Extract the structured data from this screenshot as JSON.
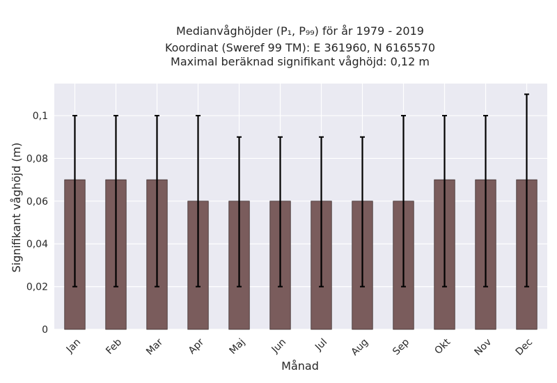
{
  "chart_data": {
    "type": "bar",
    "title_lines": [
      "Medianvåghöjder (P₁, P₉₉) för år 1979 - 2019",
      "Koordinat (Sweref 99 TM): E 361960, N 6165570",
      "Maximal beräknad signifikant våghöjd: 0,12 m"
    ],
    "xlabel": "Månad",
    "ylabel": "Signifikant våghöjd (m)",
    "categories": [
      "Jan",
      "Feb",
      "Mar",
      "Apr",
      "Maj",
      "Jun",
      "Jul",
      "Aug",
      "Sep",
      "Okt",
      "Nov",
      "Dec"
    ],
    "values": [
      0.07,
      0.07,
      0.07,
      0.06,
      0.06,
      0.06,
      0.06,
      0.06,
      0.06,
      0.07,
      0.07,
      0.07
    ],
    "err_low": [
      0.02,
      0.02,
      0.02,
      0.02,
      0.02,
      0.02,
      0.02,
      0.02,
      0.02,
      0.02,
      0.02,
      0.02
    ],
    "err_high": [
      0.1,
      0.1,
      0.1,
      0.1,
      0.09,
      0.09,
      0.09,
      0.09,
      0.1,
      0.1,
      0.1,
      0.11
    ],
    "ylim": [
      0,
      0.115
    ],
    "yticks": [
      0,
      0.02,
      0.04,
      0.06,
      0.08,
      0.1
    ],
    "ytick_labels": [
      "0",
      "0,02",
      "0,04",
      "0,06",
      "0,08",
      "0,1"
    ],
    "grid": true,
    "bar_color": "#7a5c5c",
    "plot_background": "#eaeaf2",
    "grid_color": "#ffffff",
    "errorbar_color": "#000000"
  }
}
